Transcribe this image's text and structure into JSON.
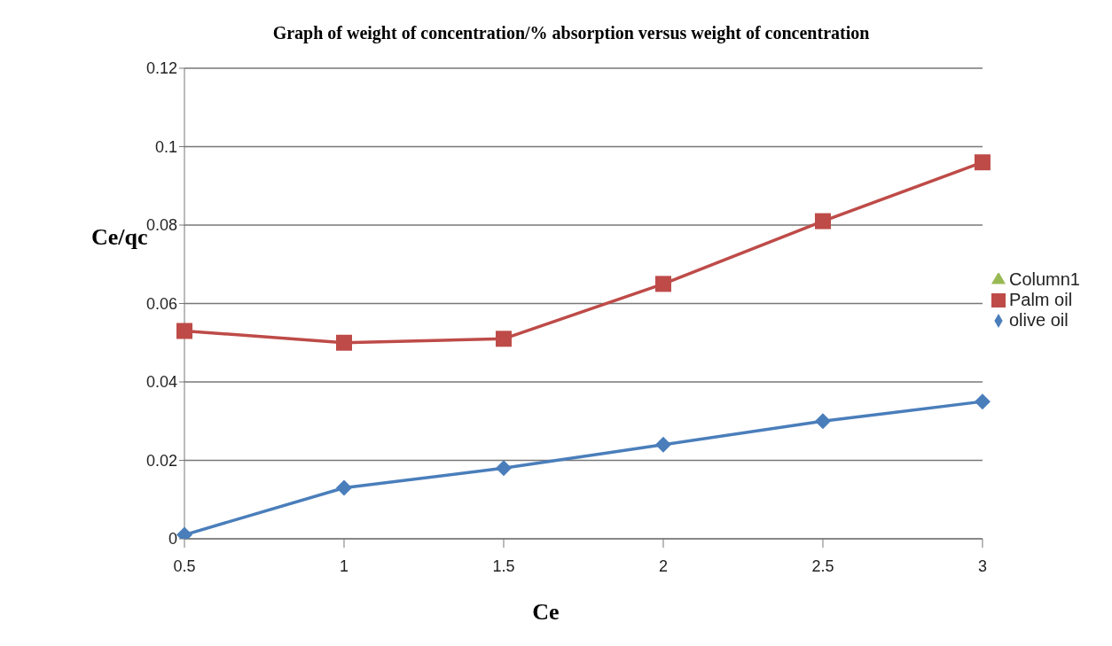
{
  "chart_data": {
    "type": "line",
    "title": "Graph of weight of concentration/% absorption versus weight of concentration",
    "xlabel": "Ce",
    "ylabel": "Ce/qc",
    "categories": [
      "0.5",
      "1",
      "1.5",
      "2",
      "2.5",
      "3"
    ],
    "series": [
      {
        "name": "olive oil",
        "color": "#4a7ebb",
        "marker": "diamond",
        "values": [
          0.001,
          0.013,
          0.018,
          0.024,
          0.03,
          0.035
        ]
      },
      {
        "name": "Palm oil",
        "color": "#be4b48",
        "marker": "square",
        "values": [
          0.053,
          0.05,
          0.051,
          0.065,
          0.081,
          0.096
        ]
      },
      {
        "name": "Column1",
        "color": "#98b954",
        "marker": "triangle",
        "values": [
          null,
          null,
          null,
          null,
          null,
          null
        ]
      }
    ],
    "ylim": [
      0,
      0.12
    ],
    "yticks": [
      0,
      0.02,
      0.04,
      0.06,
      0.08,
      0.1,
      0.12
    ],
    "grid": "y",
    "legend": "right",
    "line_style": "solid"
  }
}
